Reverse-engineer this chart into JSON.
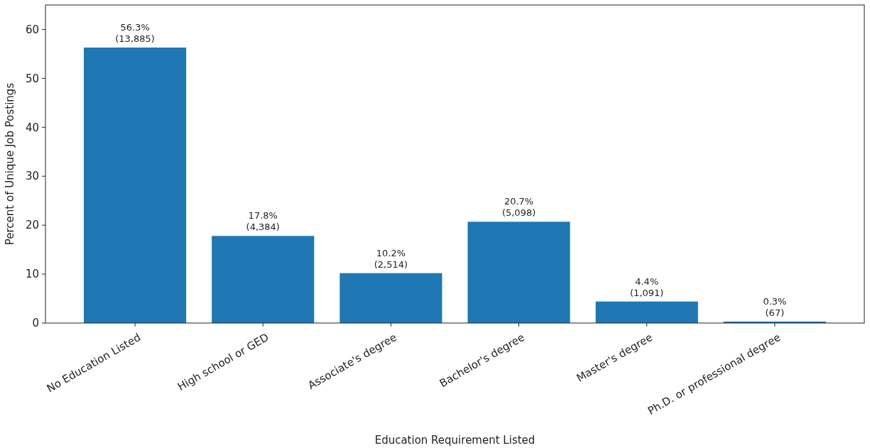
{
  "chart_data": {
    "type": "bar",
    "xlabel": "Education Requirement Listed",
    "ylabel": "Percent of Unique Job Postings",
    "categories": [
      "No Education Listed",
      "High school or GED",
      "Associate's degree",
      "Bachelor's degree",
      "Master's degree",
      "Ph.D. or professional degree"
    ],
    "values": [
      56.3,
      17.8,
      10.2,
      20.7,
      4.4,
      0.3
    ],
    "value_labels": [
      "56.3%\n(13,885)",
      "17.8%\n(4,384)",
      "10.2%\n(2,514)",
      "20.7%\n(5,098)",
      "4.4%\n(1,091)",
      "0.3%\n(67)"
    ],
    "color": "#1f77b4",
    "ylim": [
      0,
      65
    ],
    "yticks": [
      0,
      10,
      20,
      30,
      40,
      50,
      60
    ],
    "grid": false
  }
}
